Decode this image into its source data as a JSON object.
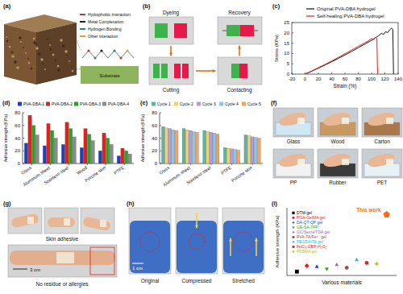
{
  "chart_data": [
    {
      "type": "line",
      "x_label": "Strain (%)",
      "y_label": "Stress (KPa)",
      "xlim": [
        -20,
        140
      ],
      "ylim": [
        0,
        25
      ],
      "xticks": [
        -20,
        0,
        20,
        40,
        60,
        80,
        100,
        120,
        140
      ],
      "yticks": [
        0,
        5,
        10,
        15,
        20,
        25
      ],
      "legend": "top",
      "series": [
        {
          "name": "Original PVA-DBA hydrogel",
          "color": "#111111",
          "x": [
            0,
            10,
            20,
            30,
            40,
            50,
            60,
            70,
            80,
            90,
            100,
            110,
            115,
            118,
            121,
            124,
            127,
            130,
            132,
            133
          ],
          "values": [
            0,
            1.4,
            2.9,
            4.4,
            6,
            7.6,
            9.3,
            11,
            12.8,
            14.6,
            16.4,
            18.5,
            19.8,
            19.2,
            20.6,
            20.1,
            21.4,
            22.3,
            21.6,
            0
          ]
        },
        {
          "name": "Self-healing PVA-DBA hydrogel",
          "color": "#e3201b",
          "x": [
            0,
            10,
            20,
            30,
            40,
            50,
            60,
            70,
            80,
            90,
            95,
            100,
            103,
            106,
            108,
            109
          ],
          "values": [
            0,
            1.5,
            3.1,
            4.7,
            6.4,
            8.1,
            9.9,
            11.7,
            13.5,
            15.2,
            16.1,
            17.3,
            16.7,
            17.9,
            17.4,
            0
          ]
        }
      ]
    },
    {
      "type": "bar",
      "y_label": "Adhesive strength (KPa)",
      "categories": [
        "Glass",
        "Aluminum sheet",
        "Stainless steel",
        "Wood",
        "Porcine skin",
        "PTFE"
      ],
      "ylim": [
        0,
        80
      ],
      "yticks": [
        0,
        20,
        40,
        60,
        80
      ],
      "legend": "top",
      "series": [
        {
          "name": "PVA-DBA-1",
          "color": "#1f3fbf",
          "values": [
            32,
            28,
            30,
            25,
            20,
            12
          ]
        },
        {
          "name": "PVA-DBA-2",
          "color": "#e3201b",
          "values": [
            76,
            63,
            65,
            55,
            48,
            24
          ]
        },
        {
          "name": "PVA-DBA-3",
          "color": "#2ca02c",
          "values": [
            60,
            52,
            55,
            46,
            40,
            20
          ]
        },
        {
          "name": "PVA-DBA-4",
          "color": "#8c8c8c",
          "values": [
            45,
            40,
            42,
            36,
            30,
            15
          ]
        }
      ]
    },
    {
      "type": "bar",
      "y_label": "Adhesive strength (KPa)",
      "categories": [
        "Glass",
        "Aluminum sheet",
        "Stainless steel",
        "PTFE",
        "Porcine skin"
      ],
      "ylim": [
        0,
        80
      ],
      "yticks": [
        0,
        20,
        40,
        60,
        80
      ],
      "legend": "top",
      "series": [
        {
          "name": "Cycle 1",
          "color": "#5fb3a8",
          "values": [
            58,
            55,
            52,
            25,
            45
          ]
        },
        {
          "name": "Cycle 2",
          "color": "#f2d46b",
          "values": [
            56,
            53,
            50,
            24,
            44
          ]
        },
        {
          "name": "Cycle 3",
          "color": "#b39ddb",
          "values": [
            55,
            52,
            49,
            23,
            42
          ]
        },
        {
          "name": "Cycle 4",
          "color": "#8ec5e8",
          "values": [
            53,
            50,
            48,
            22,
            41
          ]
        },
        {
          "name": "Cycle 5",
          "color": "#f4a261",
          "values": [
            52,
            49,
            46,
            21,
            40
          ]
        }
      ]
    },
    {
      "type": "scatter",
      "x_label": "Various materials",
      "y_label": "Adhesive strength (KPa)",
      "xlim": [
        0,
        11
      ],
      "ylim": [
        0,
        70
      ],
      "tick_labels": false,
      "legend": "top left",
      "series": [
        {
          "name": "DTM gel",
          "color": "#000000",
          "marker": "square",
          "x": [
            1
          ],
          "values": [
            4
          ]
        },
        {
          "name": "PGA-GelMA gel",
          "color": "#e41a1c",
          "marker": "diamond",
          "x": [
            2
          ],
          "values": [
            10
          ]
        },
        {
          "name": "DA-QT-QP gel",
          "color": "#1f4fbf",
          "marker": "triangle",
          "x": [
            3
          ],
          "values": [
            9
          ]
        },
        {
          "name": "GE-SA-TFP",
          "color": "#2ca02c",
          "marker": "triangle-down",
          "x": [
            4
          ],
          "values": [
            7
          ]
        },
        {
          "name": "GC/Secre/TDA gel",
          "color": "#9467bd",
          "marker": "triangle",
          "x": [
            5
          ],
          "values": [
            11
          ]
        },
        {
          "name": "PVA-TA/Fe³⁺ gel",
          "color": "#8c564b",
          "marker": "circle",
          "x": [
            6
          ],
          "values": [
            8
          ]
        },
        {
          "name": "PEGDA/TA gel",
          "color": "#17becf",
          "marker": "triangle",
          "x": [
            7
          ],
          "values": [
            16
          ]
        },
        {
          "name": "FeCl₃-DBP-H₂O₂",
          "color": "#d62728",
          "marker": "circle",
          "x": [
            8
          ],
          "values": [
            13
          ]
        },
        {
          "name": "PSBMA gel",
          "color": "#bcbd22",
          "marker": "star",
          "x": [
            9
          ],
          "values": [
            12
          ]
        }
      ],
      "annotations": [
        {
          "text": "This work",
          "x": 10,
          "y": 63,
          "color": "#ff6a13",
          "marker": "pentagon"
        }
      ]
    }
  ],
  "figure": {
    "letters": [
      "(a)",
      "(b)",
      "(c)",
      "(d)",
      "(e)",
      "(f)",
      "(g)",
      "(h)",
      "(i)"
    ],
    "a": {
      "legend": [
        {
          "label": "Hydrophobic Interaction",
          "color": "#c0392b"
        },
        {
          "label": "Metal Complexation",
          "color": "#222222"
        },
        {
          "label": "Hydrogen Bonding",
          "color": "#2e8b57"
        },
        {
          "label": "Other Interaction",
          "color": "#f0a020"
        }
      ],
      "substrate": "Substrate"
    },
    "b": {
      "steps": [
        "Dyeing",
        "Recovery",
        "Cutting",
        "Contacting"
      ]
    },
    "f": {
      "substrates": [
        "Glass",
        "Wood",
        "Carton",
        "PP",
        "Rubber",
        "PET"
      ]
    },
    "g": {
      "captions": [
        "Skin adhesive",
        "No residue or allergies"
      ],
      "scale": "3 cm"
    },
    "h": {
      "states": [
        "Original",
        "Compressed",
        "Stretched"
      ],
      "scale": "1 cm"
    }
  }
}
